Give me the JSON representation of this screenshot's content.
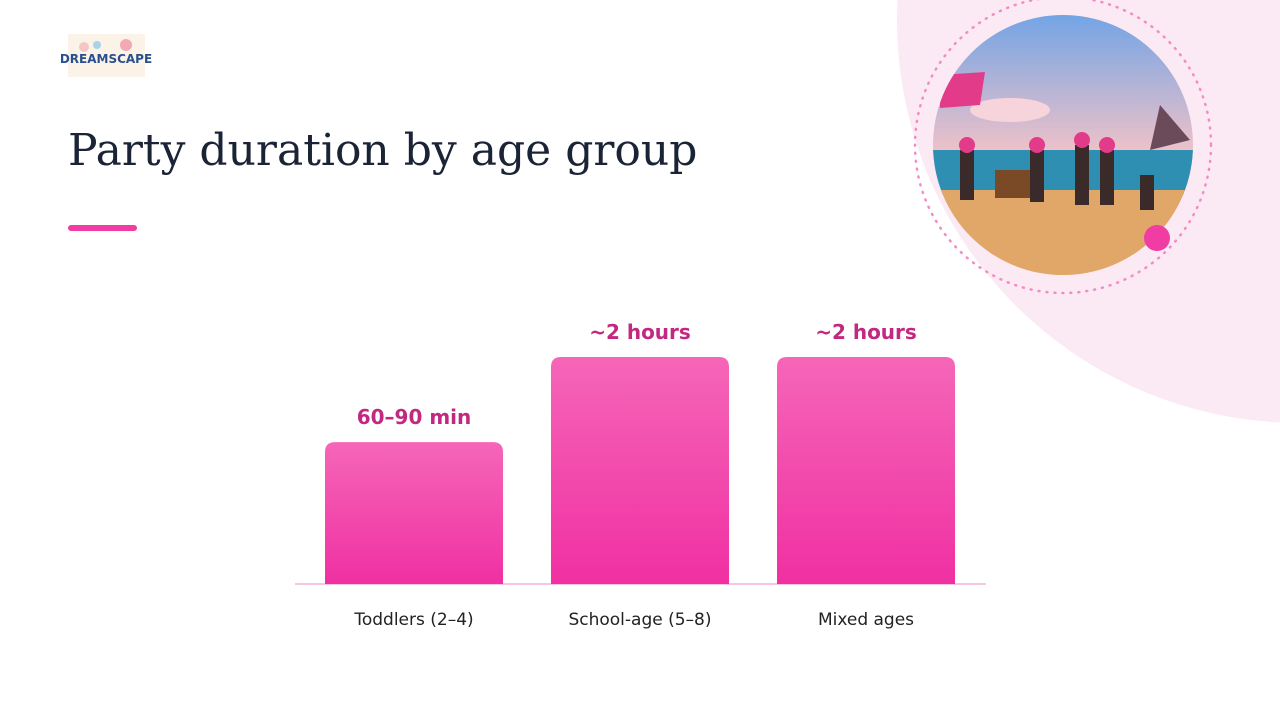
{
  "logo": {
    "text": "DREAMSCAPE"
  },
  "chart_data": {
    "type": "bar",
    "title": "Party duration by age group",
    "categories": [
      "Toddlers (2–4)",
      "School-age (5–8)",
      "Mixed ages"
    ],
    "values": [
      75,
      120,
      120
    ],
    "value_labels": [
      "60–90 min",
      "~2 hours",
      "~2 hours"
    ],
    "color": "#f24aa9"
  }
}
